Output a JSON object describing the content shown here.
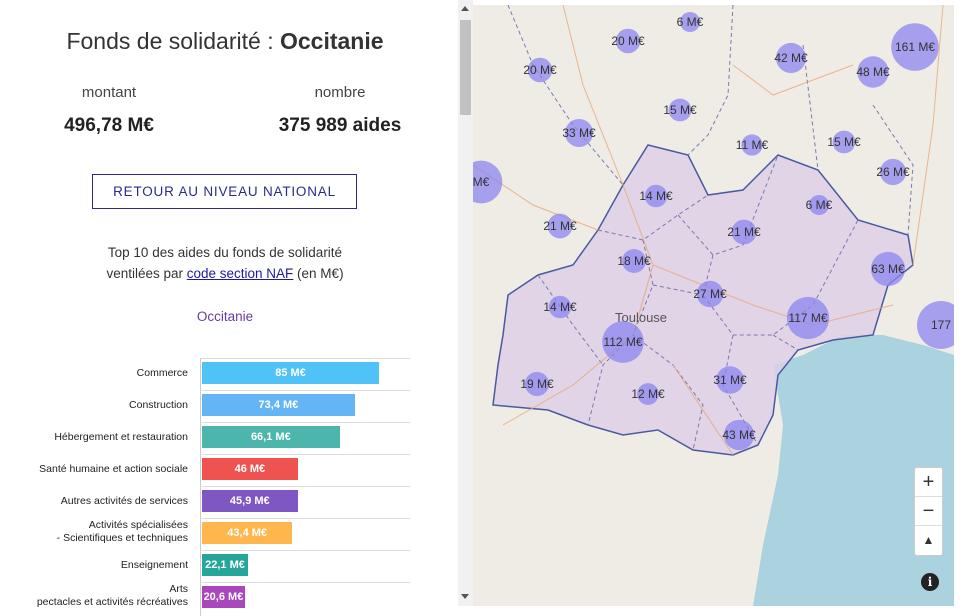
{
  "header": {
    "prefix": "Fonds de solidarité : ",
    "region": "Occitanie"
  },
  "stats": {
    "montant_label": "montant",
    "montant_value": "496,78 M€",
    "nombre_label": "nombre",
    "nombre_value": "375 989 aides"
  },
  "retour_label": "RETOUR AU NIVEAU NATIONAL",
  "top10": {
    "line1": "Top 10 des aides du fonds de solidarité",
    "line2_prefix": "ventilées par ",
    "line2_link": "code section NAF",
    "line2_suffix": " (en M€)"
  },
  "chart_data": {
    "type": "bar",
    "title": "Occitanie",
    "categories": [
      "Commerce",
      "Construction",
      "Hébergement et restauration",
      "Santé humaine et action sociale",
      "Autres activités de services",
      "Activités spécialisées\n- Scientifiques et techniques",
      "Enseignement",
      "Arts\npectacles et activités récréatives"
    ],
    "values": [
      85,
      73.4,
      66.1,
      46,
      45.9,
      43.4,
      22.1,
      20.6
    ],
    "value_labels": [
      "85 M€",
      "73,4 M€",
      "66,1 M€",
      "46 M€",
      "45,9 M€",
      "43,4 M€",
      "22,1 M€",
      "20,6 M€"
    ],
    "colors": [
      "#4fc3f7",
      "#64b5f6",
      "#4db6ac",
      "#ef5350",
      "#7e57c2",
      "#ffb74d",
      "#26a69a",
      "#ab47bc"
    ]
  },
  "map": {
    "city_label": "Toulouse",
    "bubbles": [
      {
        "label": "6 M€",
        "v": 6
      },
      {
        "label": "20 M€",
        "v": 20
      },
      {
        "label": "42 M€",
        "v": 42
      },
      {
        "label": "161 M€",
        "v": 161
      },
      {
        "label": "20 M€",
        "v": 20
      },
      {
        "label": "48 M€",
        "v": 48
      },
      {
        "label": "15 M€",
        "v": 15
      },
      {
        "label": "33 M€",
        "v": 33
      },
      {
        "label": "11 M€",
        "v": 11
      },
      {
        "label": "15 M€",
        "v": 15
      },
      {
        "label": "26 M€",
        "v": 26
      },
      {
        "label": "M€",
        "v": 120
      },
      {
        "label": "14 M€",
        "v": 14
      },
      {
        "label": "6 M€",
        "v": 6
      },
      {
        "label": "21 M€",
        "v": 21
      },
      {
        "label": "21 M€",
        "v": 21
      },
      {
        "label": "18 M€",
        "v": 18
      },
      {
        "label": "63 M€",
        "v": 63
      },
      {
        "label": "27 M€",
        "v": 27
      },
      {
        "label": "14 M€",
        "v": 14
      },
      {
        "label": "117 M€",
        "v": 117
      },
      {
        "label": "177",
        "v": 177
      },
      {
        "label": "112 M€",
        "v": 112
      },
      {
        "label": "19 M€",
        "v": 19
      },
      {
        "label": "12 M€",
        "v": 12
      },
      {
        "label": "31 M€",
        "v": 31
      },
      {
        "label": "43 M€",
        "v": 43
      }
    ],
    "zoom_in": "+",
    "zoom_out": "−",
    "compass": "▲",
    "info": "i"
  }
}
